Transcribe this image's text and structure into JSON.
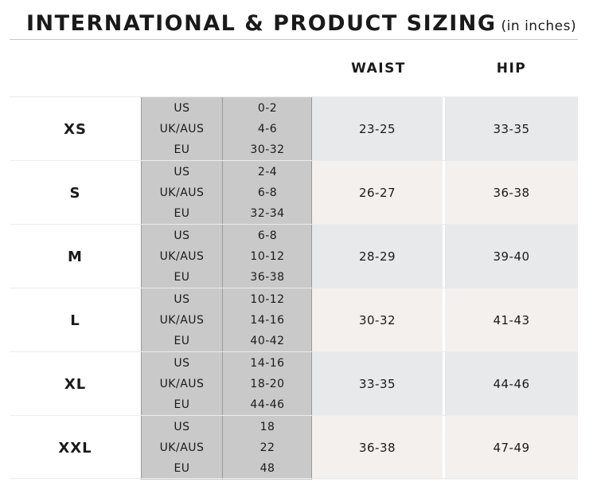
{
  "header": {
    "title": "INTERNATIONAL & PRODUCT SIZING",
    "subtitle": "(in inches)"
  },
  "columns": {
    "waist": "WAIST",
    "hip": "HIP"
  },
  "rows": [
    {
      "size": "XS",
      "us_label": "US",
      "us": "0-2",
      "uk_label": "UK/AUS",
      "uk": "4-6",
      "eu_label": "EU",
      "eu": "30-32",
      "waist": "23-25",
      "hip": "33-35"
    },
    {
      "size": "S",
      "us_label": "US",
      "us": "2-4",
      "uk_label": "UK/AUS",
      "uk": "6-8",
      "eu_label": "EU",
      "eu": "32-34",
      "waist": "26-27",
      "hip": "36-38"
    },
    {
      "size": "M",
      "us_label": "US",
      "us": "6-8",
      "uk_label": "UK/AUS",
      "uk": "10-12",
      "eu_label": "EU",
      "eu": "36-38",
      "waist": "28-29",
      "hip": "39-40"
    },
    {
      "size": "L",
      "us_label": "US",
      "us": "10-12",
      "uk_label": "UK/AUS",
      "uk": "14-16",
      "eu_label": "EU",
      "eu": "40-42",
      "waist": "30-32",
      "hip": "41-43"
    },
    {
      "size": "XL",
      "us_label": "US",
      "us": "14-16",
      "uk_label": "UK/AUS",
      "uk": "18-20",
      "eu_label": "EU",
      "eu": "44-46",
      "waist": "33-35",
      "hip": "44-46"
    },
    {
      "size": "XXL",
      "us_label": "US",
      "us": "18",
      "uk_label": "UK/AUS",
      "uk": "22",
      "eu_label": "EU",
      "eu": "48",
      "waist": "36-38",
      "hip": "47-49"
    }
  ]
}
